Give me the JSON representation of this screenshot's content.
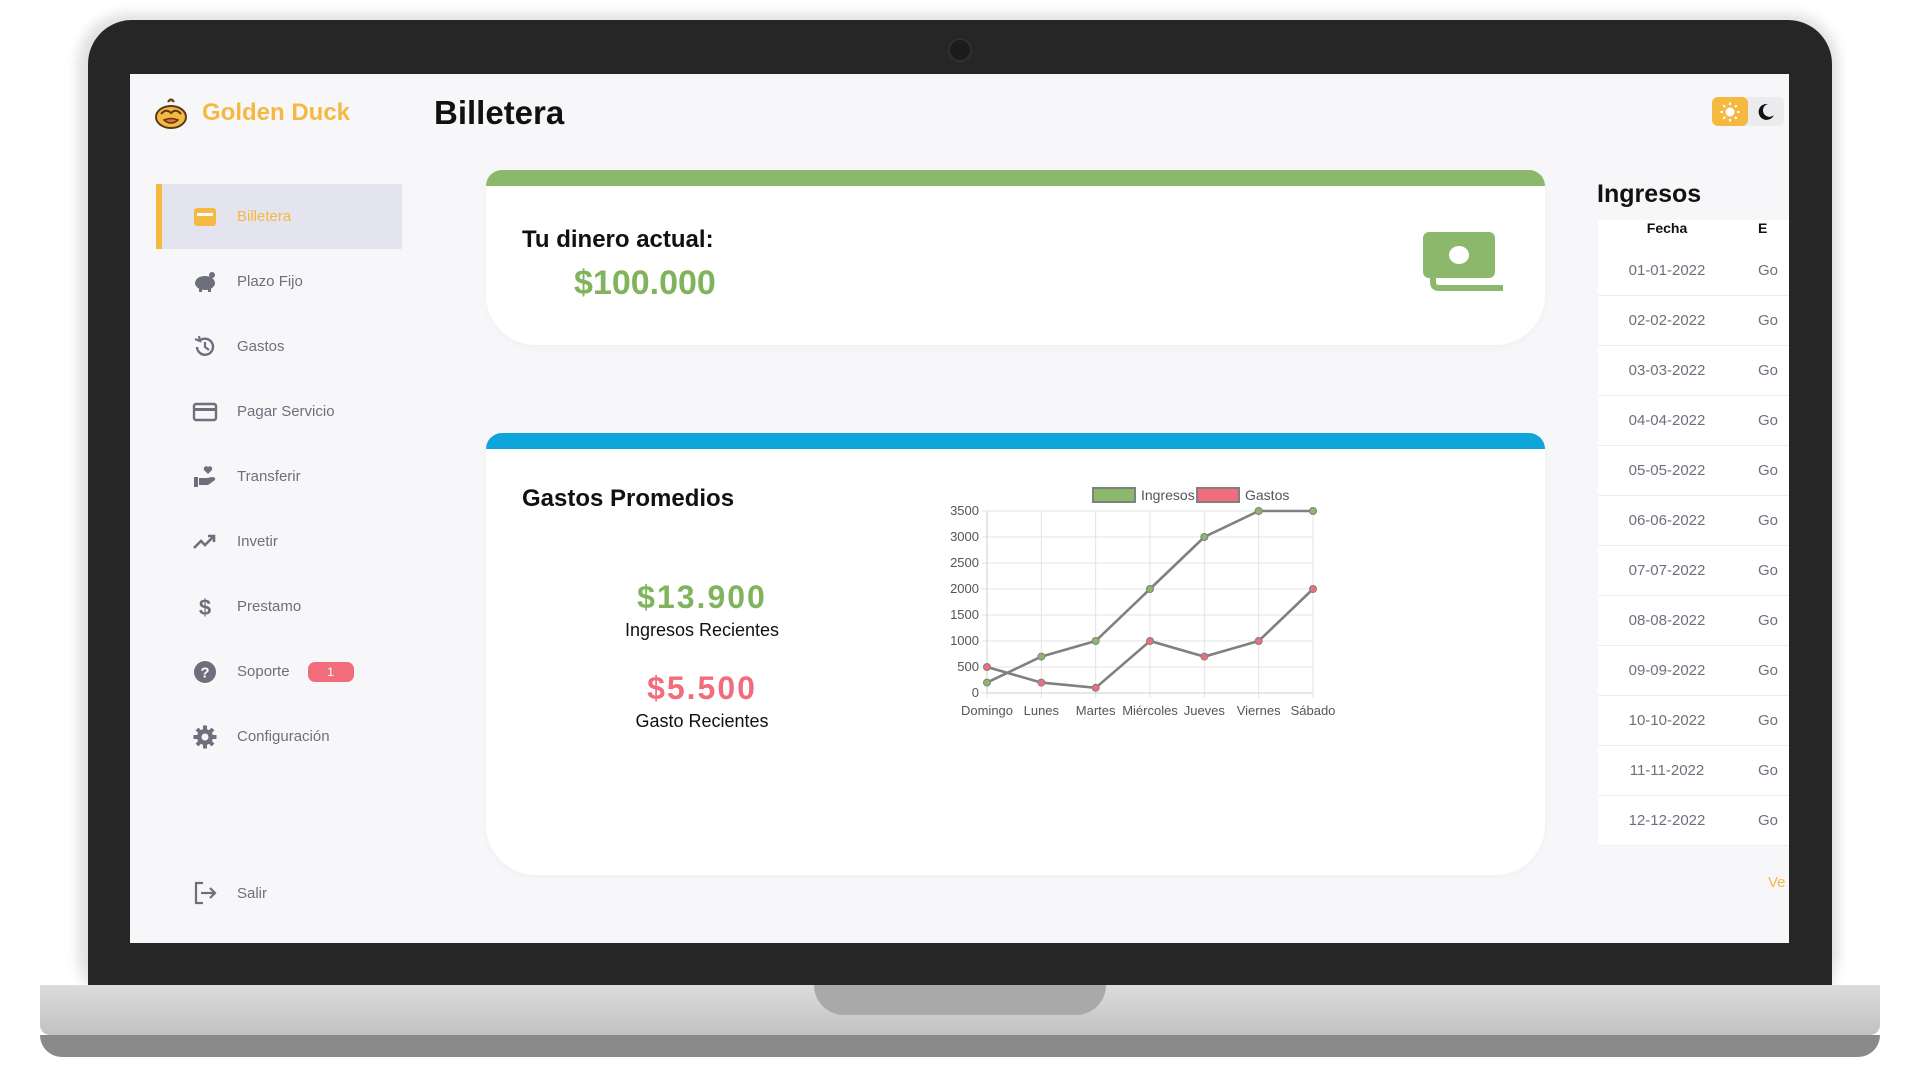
{
  "app": {
    "name": "Golden Duck"
  },
  "sidebar": {
    "items": [
      {
        "label": "Billetera",
        "icon": "wallet-icon",
        "active": true
      },
      {
        "label": "Plazo Fijo",
        "icon": "piggy-bank-icon"
      },
      {
        "label": "Gastos",
        "icon": "history-icon"
      },
      {
        "label": "Pagar Servicio",
        "icon": "credit-card-icon"
      },
      {
        "label": "Transferir",
        "icon": "hand-heart-icon"
      },
      {
        "label": "Invetir",
        "icon": "trending-up-icon"
      },
      {
        "label": "Prestamo",
        "icon": "dollar-icon"
      },
      {
        "label": "Soporte",
        "icon": "help-circle-icon",
        "badge": "1"
      },
      {
        "label": "Configuración",
        "icon": "gear-icon"
      }
    ],
    "logout": {
      "label": "Salir",
      "icon": "logout-icon"
    }
  },
  "header": {
    "title": "Billetera",
    "theme_toggle": {
      "light_icon": "sun-icon",
      "dark_icon": "moon-icon",
      "selected": "light"
    }
  },
  "balance": {
    "label": "Tu dinero actual:",
    "value": "$100.000",
    "icon": "money-bill-icon"
  },
  "averages": {
    "title": "Gastos Promedios",
    "income_value": "$13.900",
    "income_label": "Ingresos Recientes",
    "expense_value": "$5.500",
    "expense_label": "Gasto Recientes"
  },
  "chart_data": {
    "type": "line",
    "categories": [
      "Domingo",
      "Lunes",
      "Martes",
      "Miércoles",
      "Jueves",
      "Viernes",
      "Sábado"
    ],
    "series": [
      {
        "name": "Ingresos",
        "color": "#8cb86b",
        "values": [
          200,
          700,
          1000,
          2000,
          3000,
          3500,
          3500
        ]
      },
      {
        "name": "Gastos",
        "color": "#f26d7c",
        "values": [
          500,
          200,
          100,
          1000,
          700,
          1000,
          2000
        ]
      }
    ],
    "ylim": [
      0,
      3500
    ],
    "yticks": [
      0,
      500,
      1000,
      1500,
      2000,
      2500,
      3000,
      3500
    ],
    "legend": "top",
    "grid": true,
    "line_color": "#808080"
  },
  "income": {
    "title": "Ingresos",
    "columns": [
      "Fecha",
      "E"
    ],
    "rows": [
      {
        "date": "01-01-2022",
        "desc": "Go"
      },
      {
        "date": "02-02-2022",
        "desc": "Go"
      },
      {
        "date": "03-03-2022",
        "desc": "Go"
      },
      {
        "date": "04-04-2022",
        "desc": "Go"
      },
      {
        "date": "05-05-2022",
        "desc": "Go"
      },
      {
        "date": "06-06-2022",
        "desc": "Go"
      },
      {
        "date": "07-07-2022",
        "desc": "Go"
      },
      {
        "date": "08-08-2022",
        "desc": "Go"
      },
      {
        "date": "09-09-2022",
        "desc": "Go"
      },
      {
        "date": "10-10-2022",
        "desc": "Go"
      },
      {
        "date": "11-11-2022",
        "desc": "Go"
      },
      {
        "date": "12-12-2022",
        "desc": "Go"
      }
    ],
    "see_more": "Ve"
  }
}
